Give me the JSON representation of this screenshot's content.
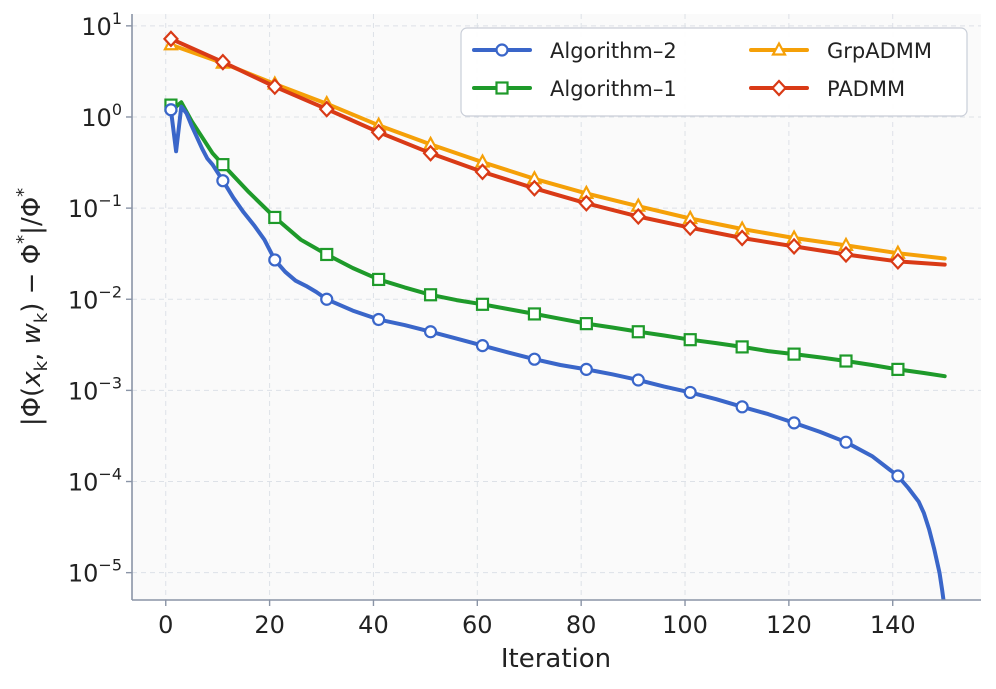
{
  "chart_data": {
    "type": "line",
    "title": "",
    "xlabel": "Iteration",
    "ylabel": "|Φ(x_k, w_k) − Φ*|/Φ*",
    "yscale": "log",
    "xlim": [
      -6.5,
      157
    ],
    "ylim_log10": [
      -5.3,
      1.13
    ],
    "x_ticks": [
      0,
      20,
      40,
      60,
      80,
      100,
      120,
      140
    ],
    "y_ticks": [
      {
        "exp": 1,
        "base": "10",
        "power": "1"
      },
      {
        "exp": 0,
        "base": "10",
        "power": "0"
      },
      {
        "exp": -1,
        "base": "10",
        "power": "−1"
      },
      {
        "exp": -2,
        "base": "10",
        "power": "−2"
      },
      {
        "exp": -3,
        "base": "10",
        "power": "−3"
      },
      {
        "exp": -4,
        "base": "10",
        "power": "−4"
      },
      {
        "exp": -5,
        "base": "10",
        "power": "−5"
      }
    ],
    "grid": true,
    "legend_position": "top-right",
    "series": [
      {
        "name": "Algorithm–2",
        "color": "#3a66c9",
        "marker": "circle",
        "x": [
          1,
          2,
          3,
          4,
          5,
          6,
          7,
          8,
          9,
          11,
          13,
          15,
          17,
          19,
          21,
          23,
          25,
          27,
          29,
          31,
          36,
          41,
          46,
          51,
          56,
          61,
          66,
          71,
          76,
          81,
          86,
          91,
          96,
          101,
          106,
          111,
          116,
          121,
          126,
          131,
          136,
          141,
          143,
          145,
          146,
          147,
          148,
          149,
          149.5,
          150
        ],
        "y": [
          1.2,
          0.42,
          1.3,
          1.1,
          0.8,
          0.6,
          0.45,
          0.35,
          0.3,
          0.2,
          0.13,
          0.09,
          0.065,
          0.045,
          0.027,
          0.02,
          0.016,
          0.014,
          0.012,
          0.01,
          0.0075,
          0.006,
          0.0052,
          0.0044,
          0.0037,
          0.0031,
          0.0026,
          0.0022,
          0.0019,
          0.0017,
          0.0015,
          0.0013,
          0.0011,
          0.00095,
          0.0008,
          0.00066,
          0.00055,
          0.00044,
          0.00035,
          0.00027,
          0.00019,
          0.000115,
          8.5e-05,
          6e-05,
          4.5e-05,
          3e-05,
          1.8e-05,
          1e-05,
          6.5e-06,
          4e-06
        ],
        "marker_x": [
          1,
          11,
          21,
          31,
          41,
          51,
          61,
          71,
          81,
          91,
          101,
          111,
          121,
          131,
          141
        ]
      },
      {
        "name": "Algorithm–1",
        "color": "#1e9a2a",
        "marker": "square",
        "x": [
          1,
          2,
          3,
          5,
          7,
          9,
          11,
          16,
          21,
          26,
          31,
          36,
          41,
          46,
          51,
          56,
          61,
          66,
          71,
          76,
          81,
          86,
          91,
          96,
          101,
          106,
          111,
          116,
          121,
          126,
          131,
          136,
          141,
          146,
          150
        ],
        "y": [
          1.35,
          1.3,
          1.45,
          0.9,
          0.6,
          0.4,
          0.3,
          0.15,
          0.079,
          0.045,
          0.031,
          0.022,
          0.0165,
          0.0135,
          0.0112,
          0.0098,
          0.0088,
          0.0078,
          0.0069,
          0.0061,
          0.0054,
          0.0049,
          0.0044,
          0.004,
          0.0036,
          0.0033,
          0.003,
          0.0027,
          0.0025,
          0.0023,
          0.0021,
          0.0019,
          0.0017,
          0.00155,
          0.00143
        ],
        "marker_x": [
          1,
          11,
          21,
          31,
          41,
          51,
          61,
          71,
          81,
          91,
          101,
          111,
          121,
          131,
          141
        ]
      },
      {
        "name": "GrpADMM",
        "color": "#f5a008",
        "marker": "triangle",
        "x": [
          1,
          11,
          21,
          31,
          41,
          51,
          61,
          71,
          81,
          91,
          101,
          111,
          121,
          131,
          141,
          150
        ],
        "y": [
          6.2,
          3.9,
          2.3,
          1.4,
          0.81,
          0.5,
          0.32,
          0.21,
          0.145,
          0.105,
          0.077,
          0.059,
          0.047,
          0.039,
          0.032,
          0.028
        ],
        "marker_x": [
          1,
          11,
          21,
          31,
          41,
          51,
          61,
          71,
          81,
          91,
          101,
          111,
          121,
          131,
          141
        ]
      },
      {
        "name": "PADMM",
        "color": "#d93a16",
        "marker": "diamond",
        "x": [
          1,
          11,
          21,
          31,
          41,
          51,
          61,
          71,
          81,
          91,
          101,
          111,
          121,
          131,
          141,
          150
        ],
        "y": [
          7.2,
          4.0,
          2.15,
          1.22,
          0.68,
          0.4,
          0.25,
          0.165,
          0.113,
          0.081,
          0.061,
          0.047,
          0.038,
          0.031,
          0.026,
          0.024
        ],
        "marker_x": [
          1,
          11,
          21,
          31,
          41,
          51,
          61,
          71,
          81,
          91,
          101,
          111,
          121,
          131,
          141
        ]
      }
    ],
    "legend_order": [
      0,
      1,
      2,
      3
    ],
    "ylabel_parts": [
      "|Φ(",
      "x",
      "k",
      ", ",
      "w",
      "k",
      ") − Φ",
      "*",
      "|/Φ",
      "*"
    ]
  }
}
